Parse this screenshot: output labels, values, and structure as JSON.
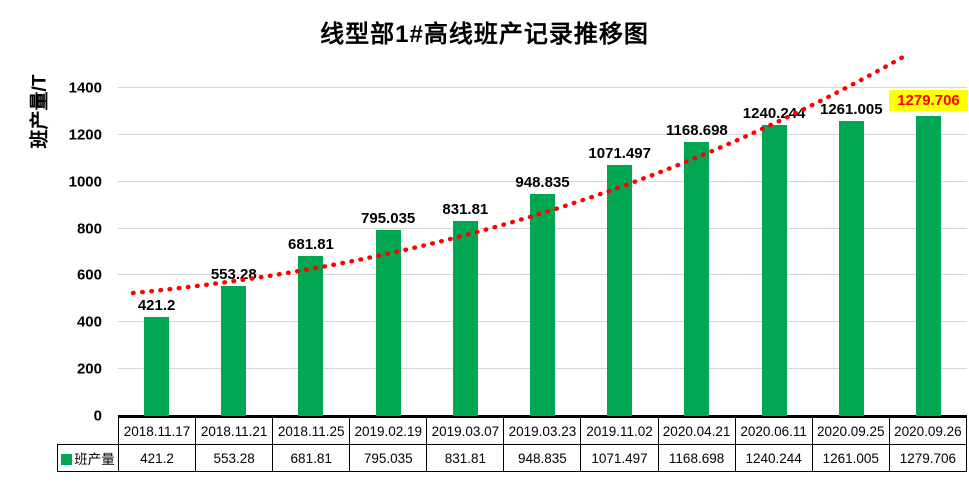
{
  "title": "线型部1#高线班产记录推移图",
  "y_axis": {
    "title": "班产量/T",
    "ticks": [
      "0",
      "200",
      "400",
      "600",
      "800",
      "1000",
      "1200",
      "1400"
    ],
    "max": 1400
  },
  "legend": {
    "label": "班产量"
  },
  "colors": {
    "bar": "#00a651",
    "trendline": "#ff0000",
    "highlight_bg": "#ffff00",
    "highlight_text": "#ff0000",
    "gridline": "#d6d6d6"
  },
  "chart_data": {
    "type": "bar",
    "title": "线型部1#高线班产记录推移图",
    "xlabel": "",
    "ylabel": "班产量/T",
    "ylim": [
      0,
      1400
    ],
    "grid": true,
    "legend_position": "bottom-left table",
    "categories": [
      "2018.11.17",
      "2018.11.21",
      "2018.11.25",
      "2019.02.19",
      "2019.03.07",
      "2019.03.23",
      "2019.11.02",
      "2020.04.21",
      "2020.06.11",
      "2020.09.25",
      "2020.09.26"
    ],
    "series": [
      {
        "name": "班产量",
        "values": [
          421.2,
          553.28,
          681.81,
          795.035,
          831.81,
          948.835,
          1071.497,
          1168.698,
          1240.244,
          1261.005,
          1279.706
        ]
      }
    ],
    "data_labels": [
      "421.2",
      "553.28",
      "681.81",
      "795.035",
      "831.81",
      "948.835",
      "1071.497",
      "1168.698",
      "1240.244",
      "1261.005",
      "1279.706"
    ],
    "highlighted_label_index": 10,
    "trendline": {
      "style": "dotted",
      "color": "#ff0000",
      "shape": "rising curve from ~500 to ~1530"
    }
  }
}
